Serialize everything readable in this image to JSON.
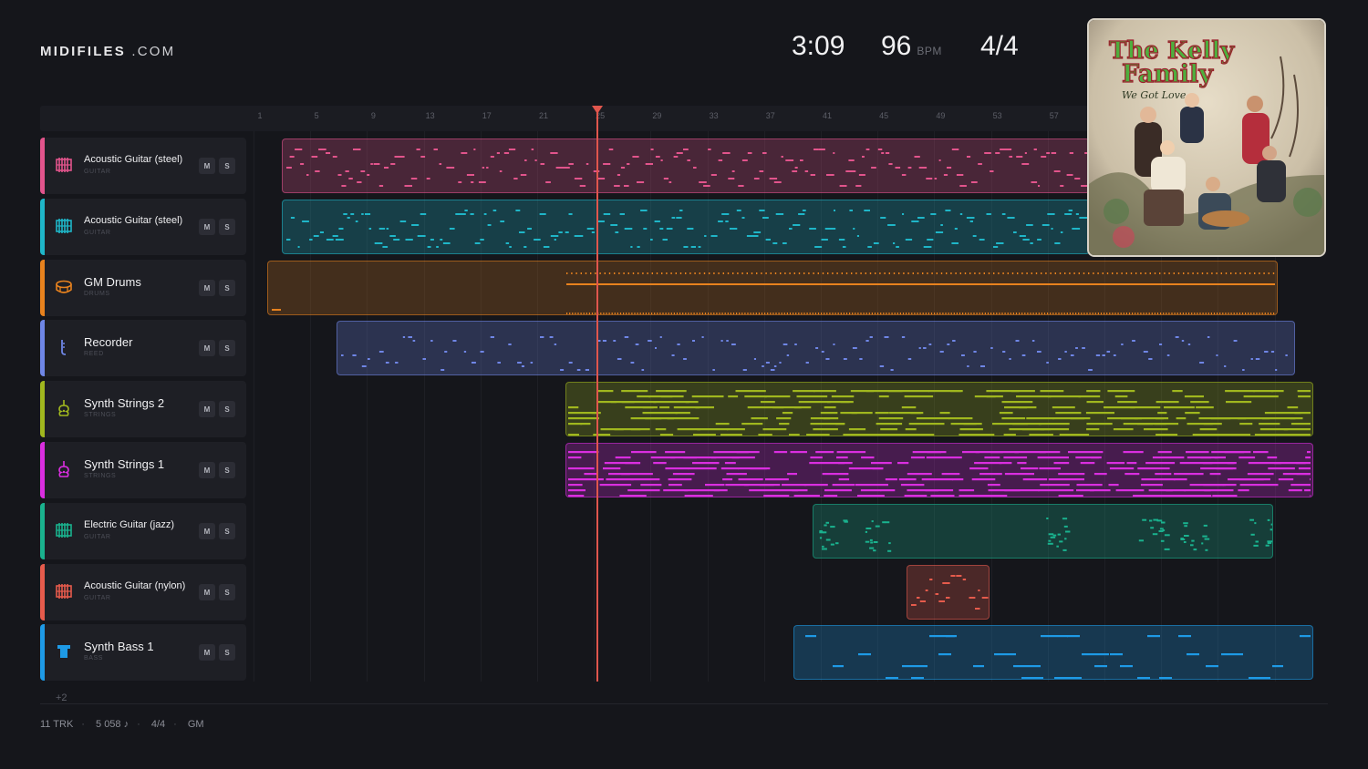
{
  "header": {
    "logo_bold": "MIDIFILES",
    "logo_light": ".COM",
    "duration": "3:09",
    "tempo": "96",
    "tempo_unit": "BPM",
    "time_signature": "4/4"
  },
  "ruler": {
    "bars": [
      "1",
      "5",
      "9",
      "13",
      "17",
      "21",
      "25",
      "29",
      "33",
      "37",
      "41",
      "45",
      "49",
      "53",
      "57"
    ]
  },
  "playhead": {
    "bar": 25
  },
  "album": {
    "art_text_line1": "The Kelly",
    "art_text_line2": "Family",
    "art_subtitle": "We Got Love"
  },
  "tracks": [
    {
      "name": "Acoustic Guitar (steel)",
      "category": "GUITAR",
      "color": "#e2548c",
      "icon": "guitar-grid-icon"
    },
    {
      "name": "Acoustic Guitar (steel)",
      "category": "GUITAR",
      "color": "#1fb6c8",
      "icon": "guitar-grid-icon"
    },
    {
      "name": "GM Drums",
      "category": "DRUMS",
      "color": "#e8821e",
      "icon": "drum-icon"
    },
    {
      "name": "Recorder",
      "category": "REED",
      "color": "#6f86e6",
      "icon": "recorder-icon"
    },
    {
      "name": "Synth Strings 2",
      "category": "STRINGS",
      "color": "#a0b71e",
      "icon": "violin-icon"
    },
    {
      "name": "Synth Strings 1",
      "category": "STRINGS",
      "color": "#da2ee0",
      "icon": "violin-icon"
    },
    {
      "name": "Electric Guitar (jazz)",
      "category": "GUITAR",
      "color": "#1ab28e",
      "icon": "guitar-grid-icon"
    },
    {
      "name": "Acoustic Guitar (nylon)",
      "category": "GUITAR",
      "color": "#e65b4c",
      "icon": "guitar-grid-icon"
    },
    {
      "name": "Synth Bass 1",
      "category": "BASS",
      "color": "#1e9ae6",
      "icon": "bass-icon"
    }
  ],
  "buttons": {
    "mute": "M",
    "solo": "S"
  },
  "more_tracks": "+2",
  "footer": {
    "tracks": "11 TRK",
    "notes": "5 058 ♪",
    "meter": "4/4",
    "standard": "GM"
  }
}
